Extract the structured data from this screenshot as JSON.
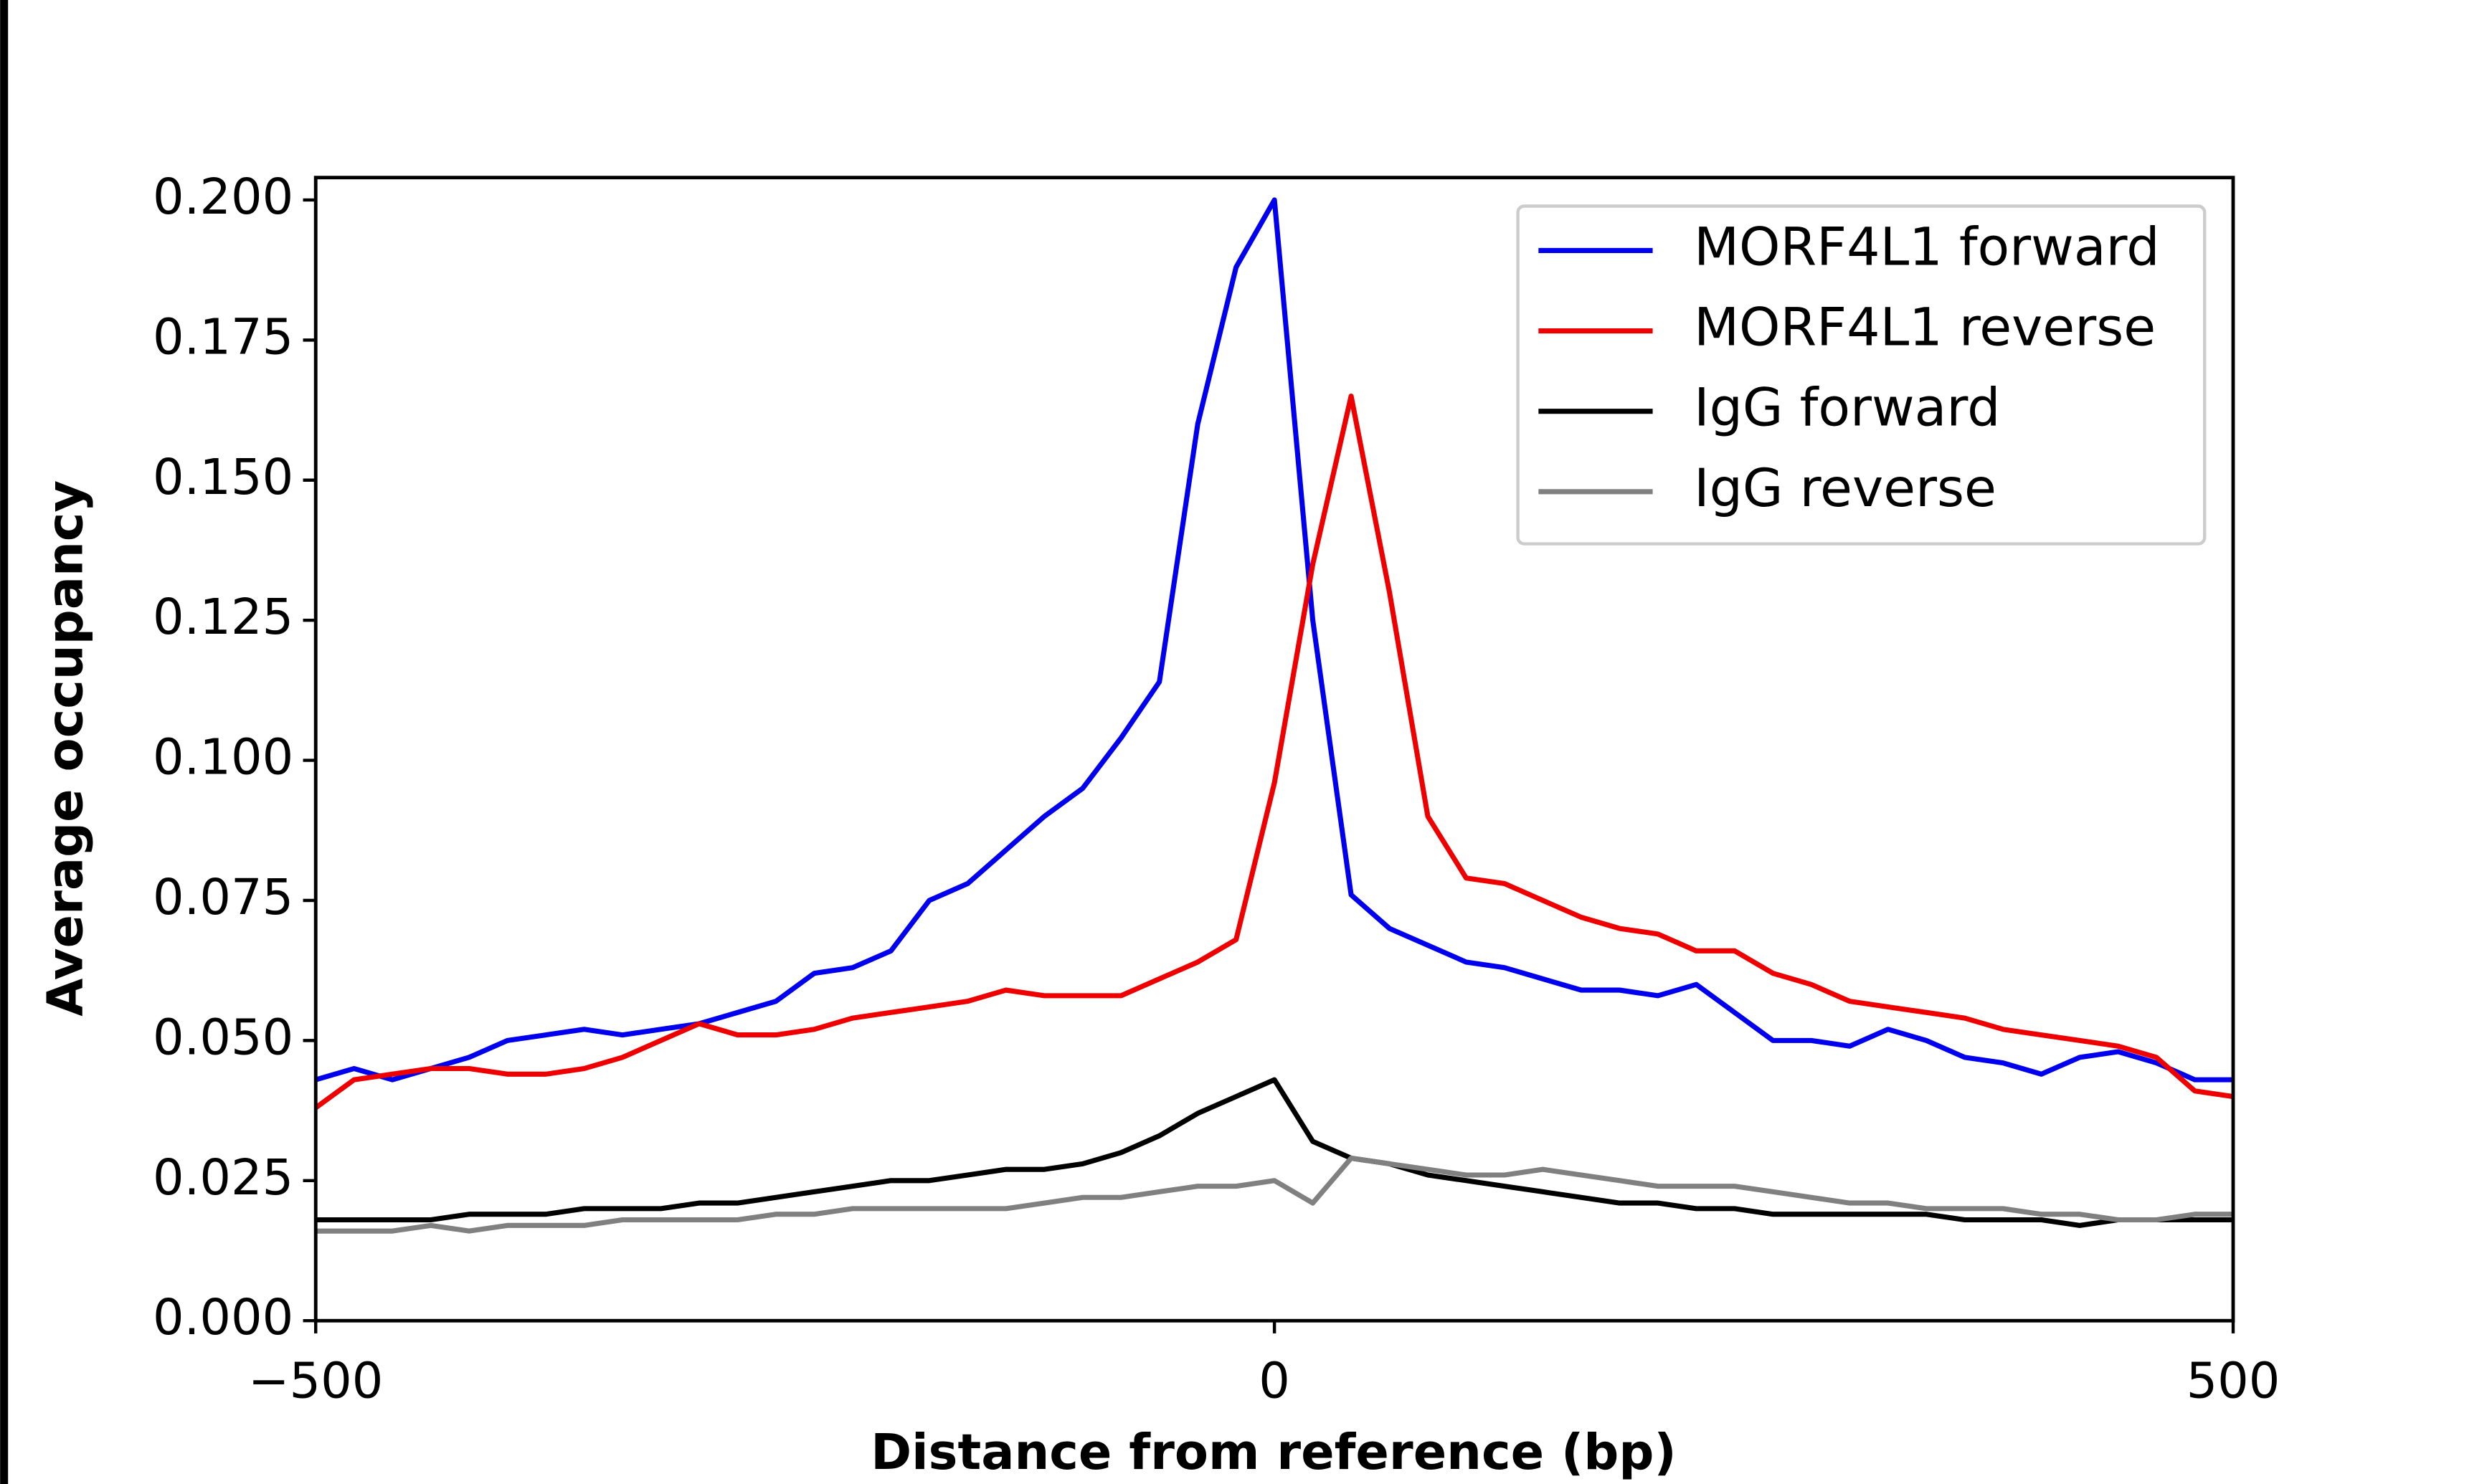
{
  "chart_data": {
    "type": "line",
    "x_label": "Distance from reference (bp)",
    "y_label": "Average occupancy",
    "xlim": [
      -500,
      500
    ],
    "ylim": [
      0,
      0.204
    ],
    "xticks": [
      {
        "value": -500,
        "label": "−500"
      },
      0,
      500
    ],
    "yticks": [
      {
        "value": 0,
        "label": "0.000"
      },
      {
        "value": 0.025,
        "label": "0.025"
      },
      {
        "value": 0.05,
        "label": "0.050"
      },
      {
        "value": 0.075,
        "label": "0.075"
      },
      {
        "value": 0.1,
        "label": "0.100"
      },
      {
        "value": 0.125,
        "label": "0.125"
      },
      {
        "value": 0.15,
        "label": "0.150"
      },
      {
        "value": 0.175,
        "label": "0.175"
      },
      {
        "value": 0.2,
        "label": "0.200"
      }
    ],
    "legend": "upper right",
    "x": [
      -500,
      -480,
      -460,
      -440,
      -420,
      -400,
      -380,
      -360,
      -340,
      -320,
      -300,
      -280,
      -260,
      -240,
      -220,
      -200,
      -180,
      -160,
      -140,
      -120,
      -100,
      -80,
      -60,
      -40,
      -20,
      0,
      20,
      40,
      60,
      80,
      100,
      120,
      140,
      160,
      180,
      200,
      220,
      240,
      260,
      280,
      300,
      320,
      340,
      360,
      380,
      400,
      420,
      440,
      460,
      480,
      500
    ],
    "series": [
      {
        "name": "MORF4L1 forward",
        "color": "#0000ee",
        "values": [
          0.043,
          0.045,
          0.043,
          0.045,
          0.047,
          0.05,
          0.051,
          0.052,
          0.051,
          0.052,
          0.053,
          0.055,
          0.057,
          0.062,
          0.063,
          0.066,
          0.075,
          0.078,
          0.084,
          0.09,
          0.095,
          0.104,
          0.114,
          0.16,
          0.188,
          0.2,
          0.125,
          0.076,
          0.07,
          0.067,
          0.064,
          0.063,
          0.061,
          0.059,
          0.059,
          0.058,
          0.06,
          0.055,
          0.05,
          0.05,
          0.049,
          0.052,
          0.05,
          0.047,
          0.046,
          0.044,
          0.047,
          0.048,
          0.046,
          0.043,
          0.043
        ]
      },
      {
        "name": "MORF4L1 reverse",
        "color": "#ee0000",
        "values": [
          0.038,
          0.043,
          0.044,
          0.045,
          0.045,
          0.044,
          0.044,
          0.045,
          0.047,
          0.05,
          0.053,
          0.051,
          0.051,
          0.052,
          0.054,
          0.055,
          0.056,
          0.057,
          0.059,
          0.058,
          0.058,
          0.058,
          0.061,
          0.064,
          0.068,
          0.096,
          0.135,
          0.165,
          0.13,
          0.09,
          0.079,
          0.078,
          0.075,
          0.072,
          0.07,
          0.069,
          0.066,
          0.066,
          0.062,
          0.06,
          0.057,
          0.056,
          0.055,
          0.054,
          0.052,
          0.051,
          0.05,
          0.049,
          0.047,
          0.041,
          0.04
        ]
      },
      {
        "name": "IgG forward",
        "color": "#000000",
        "values": [
          0.018,
          0.018,
          0.018,
          0.018,
          0.019,
          0.019,
          0.019,
          0.02,
          0.02,
          0.02,
          0.021,
          0.021,
          0.022,
          0.023,
          0.024,
          0.025,
          0.025,
          0.026,
          0.027,
          0.027,
          0.028,
          0.03,
          0.033,
          0.037,
          0.04,
          0.043,
          0.032,
          0.029,
          0.028,
          0.026,
          0.025,
          0.024,
          0.023,
          0.022,
          0.021,
          0.021,
          0.02,
          0.02,
          0.019,
          0.019,
          0.019,
          0.019,
          0.019,
          0.018,
          0.018,
          0.018,
          0.017,
          0.018,
          0.018,
          0.018,
          0.018
        ]
      },
      {
        "name": "IgG reverse",
        "color": "#808080",
        "values": [
          0.016,
          0.016,
          0.016,
          0.017,
          0.016,
          0.017,
          0.017,
          0.017,
          0.018,
          0.018,
          0.018,
          0.018,
          0.019,
          0.019,
          0.02,
          0.02,
          0.02,
          0.02,
          0.02,
          0.021,
          0.022,
          0.022,
          0.023,
          0.024,
          0.024,
          0.025,
          0.021,
          0.029,
          0.028,
          0.027,
          0.026,
          0.026,
          0.027,
          0.026,
          0.025,
          0.024,
          0.024,
          0.024,
          0.023,
          0.022,
          0.021,
          0.021,
          0.02,
          0.02,
          0.02,
          0.019,
          0.019,
          0.018,
          0.018,
          0.019,
          0.019
        ]
      }
    ]
  }
}
